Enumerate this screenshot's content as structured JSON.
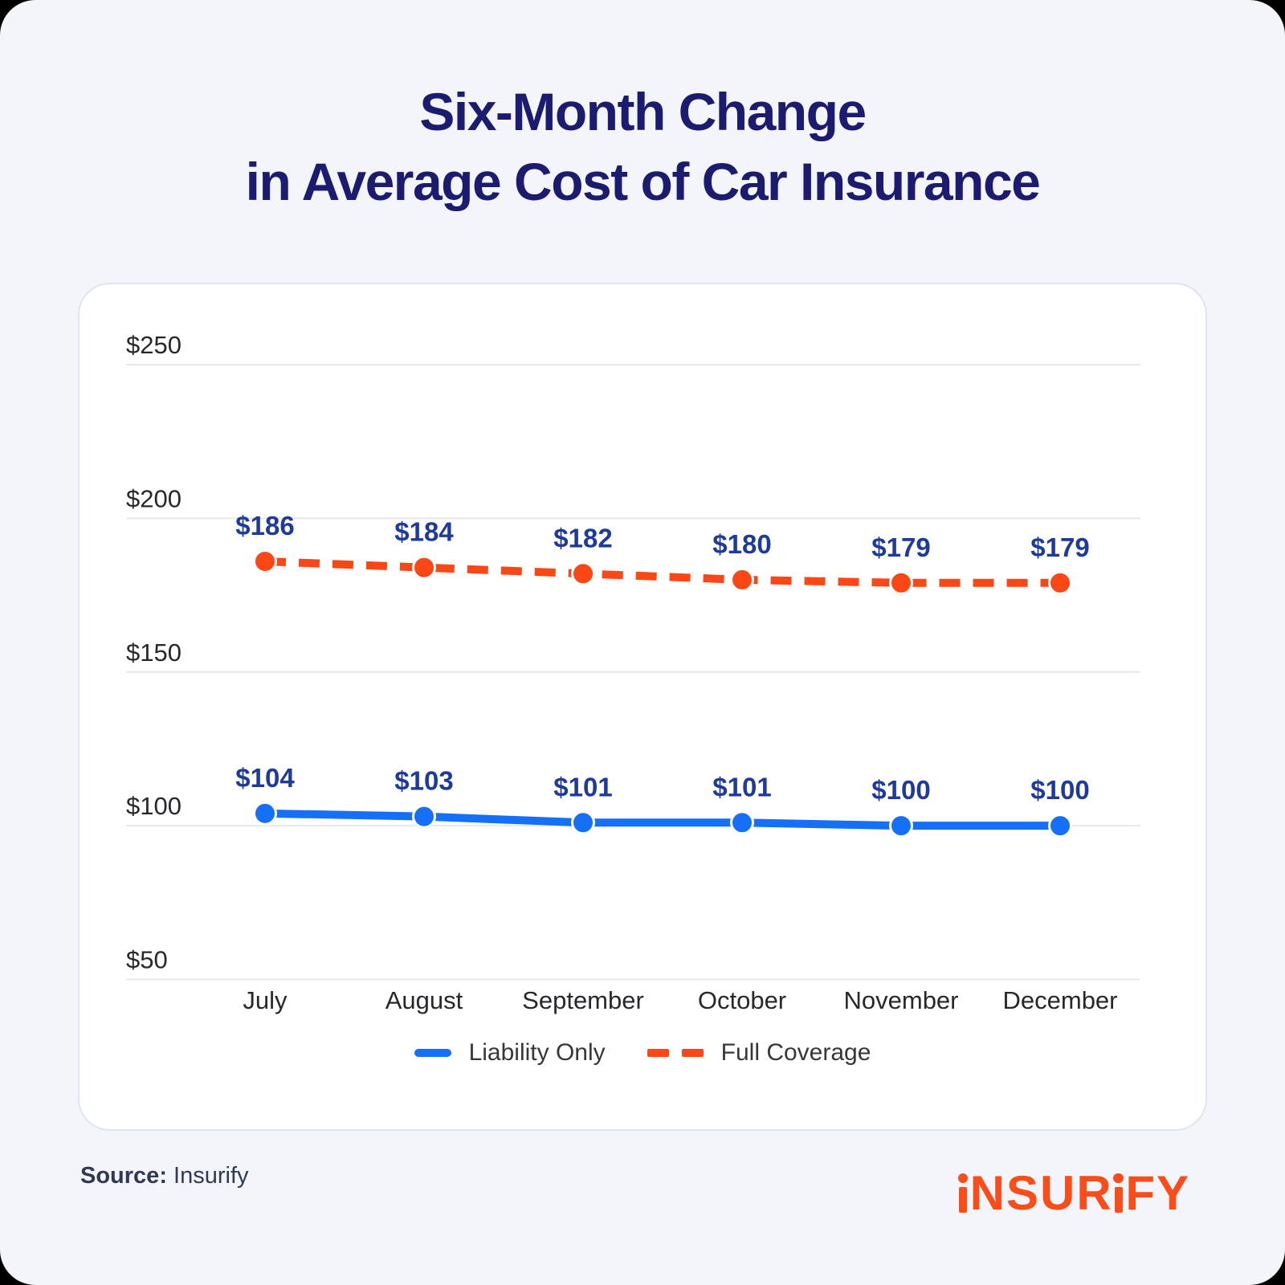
{
  "page": {
    "title_line1": "Six-Month Change",
    "title_line2": "in Average Cost of Car Insurance"
  },
  "footer": {
    "source_label": "Source:",
    "source_value": "Insurify",
    "logo_text": "INSURIFY"
  },
  "colors": {
    "background": "#f3f5fa",
    "card": "#ffffff",
    "card_border": "#dfe4ef",
    "title": "#1b1b70",
    "data_label": "#1e3a9c",
    "axis_text": "#26282e",
    "grid": "#e6e8ed",
    "liability": "#156ff7",
    "full_coverage": "#fb4716",
    "legend_text": "#35373c",
    "source_text": "#2e3a55",
    "logo": "#fb4d19"
  },
  "chart_data": {
    "type": "line",
    "title": "Six-Month Change in Average Cost of Car Insurance",
    "categories": [
      "July",
      "August",
      "September",
      "October",
      "November",
      "December"
    ],
    "series": [
      {
        "name": "Liability Only",
        "style": "solid",
        "color": "#156ff7",
        "values": [
          104,
          103,
          101,
          101,
          100,
          100
        ],
        "labels": [
          "$104",
          "$103",
          "$101",
          "$101",
          "$100",
          "$100"
        ]
      },
      {
        "name": "Full Coverage",
        "style": "dashed",
        "color": "#fb4716",
        "values": [
          186,
          184,
          182,
          180,
          179,
          179
        ],
        "labels": [
          "$186",
          "$184",
          "$182",
          "$180",
          "$179",
          "$179"
        ]
      }
    ],
    "y_ticks": [
      250,
      200,
      150,
      100,
      50
    ],
    "y_tick_labels": [
      "$250",
      "$200",
      "$150",
      "$100",
      "$50"
    ],
    "ylim": [
      50,
      250
    ],
    "grid": true,
    "legend_position": "bottom"
  }
}
